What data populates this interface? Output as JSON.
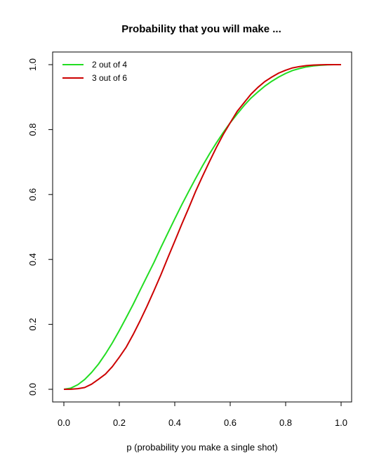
{
  "chart_data": {
    "type": "line",
    "title": "Probability that you will make ...",
    "xlabel": "p (probability you make a single shot)",
    "ylabel": "",
    "xlim": [
      0,
      1
    ],
    "ylim": [
      0,
      1
    ],
    "x_ticks": [
      "0.0",
      "0.2",
      "0.4",
      "0.6",
      "0.8",
      "1.0"
    ],
    "y_ticks": [
      "0.0",
      "0.2",
      "0.4",
      "0.6",
      "0.8",
      "1.0"
    ],
    "grid": false,
    "legend_position": "top-left",
    "x": [
      0.0,
      0.025,
      0.05,
      0.075,
      0.1,
      0.125,
      0.15,
      0.175,
      0.2,
      0.225,
      0.25,
      0.275,
      0.3,
      0.325,
      0.35,
      0.375,
      0.4,
      0.425,
      0.45,
      0.475,
      0.5,
      0.525,
      0.55,
      0.575,
      0.6,
      0.625,
      0.65,
      0.675,
      0.7,
      0.725,
      0.75,
      0.775,
      0.8,
      0.825,
      0.85,
      0.875,
      0.9,
      0.925,
      0.95,
      0.975,
      1.0
    ],
    "series": [
      {
        "name": "2 out of 4",
        "color": "#22dd22",
        "values": [
          0.0,
          0.0036,
          0.014,
          0.03,
          0.052,
          0.078,
          0.109,
          0.143,
          0.181,
          0.221,
          0.262,
          0.305,
          0.348,
          0.391,
          0.437,
          0.481,
          0.525,
          0.568,
          0.609,
          0.649,
          0.688,
          0.725,
          0.759,
          0.791,
          0.821,
          0.848,
          0.874,
          0.897,
          0.916,
          0.934,
          0.949,
          0.962,
          0.973,
          0.982,
          0.988,
          0.993,
          0.996,
          0.998,
          0.9995,
          0.9999,
          1.0
        ]
      },
      {
        "name": "3 out of 6",
        "color": "#cc0000",
        "values": [
          0.0,
          0.0002,
          0.002,
          0.0055,
          0.0159,
          0.031,
          0.047,
          0.07,
          0.099,
          0.13,
          0.169,
          0.211,
          0.256,
          0.304,
          0.353,
          0.405,
          0.456,
          0.508,
          0.558,
          0.609,
          0.656,
          0.701,
          0.745,
          0.785,
          0.821,
          0.856,
          0.883,
          0.909,
          0.93,
          0.948,
          0.962,
          0.974,
          0.983,
          0.99,
          0.9941,
          0.997,
          0.9987,
          0.9995,
          0.9999,
          1.0,
          1.0
        ]
      }
    ]
  }
}
